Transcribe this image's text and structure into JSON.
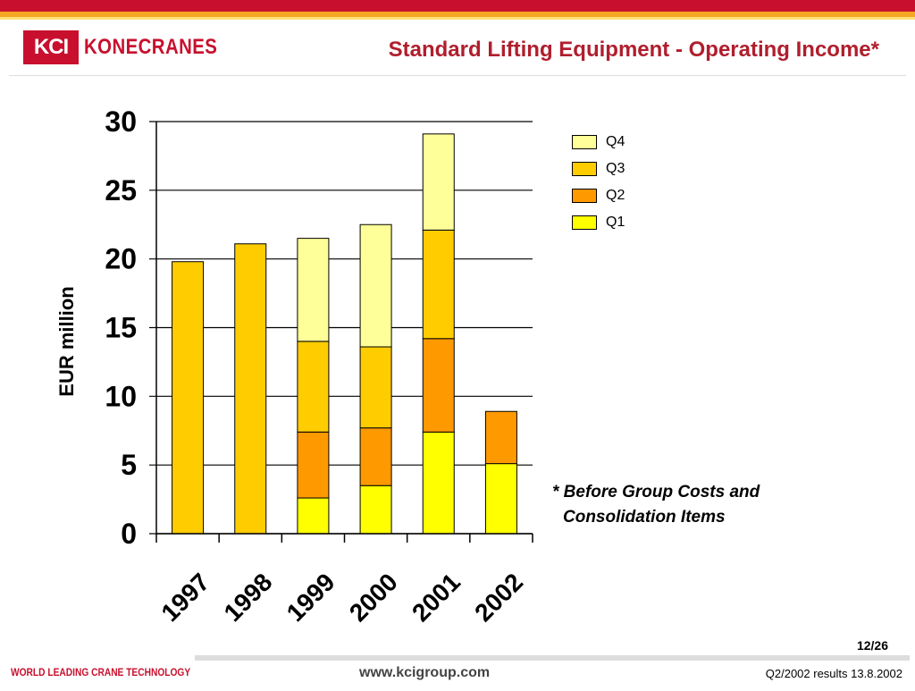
{
  "header": {
    "logo_mark": "KCI",
    "logo_text": "KONECRANES",
    "title": "Standard Lifting Equipment - Operating Income*"
  },
  "colors": {
    "Q1": "#ffff00",
    "Q2": "#ff9900",
    "Q3": "#ffcc00",
    "Q4": "#ffff99",
    "brand_red": "#c8102e"
  },
  "chart_data": {
    "type": "bar",
    "stacked": true,
    "categories": [
      "1997",
      "1998",
      "1999",
      "2000",
      "2001",
      "2002"
    ],
    "series": [
      {
        "name": "Q1",
        "values": [
          0,
          0,
          2.6,
          3.5,
          7.4,
          5.1
        ]
      },
      {
        "name": "Q2",
        "values": [
          0,
          0,
          4.8,
          4.2,
          6.8,
          3.8
        ]
      },
      {
        "name": "Q3",
        "values": [
          19.8,
          21.1,
          6.6,
          5.9,
          7.9,
          0
        ]
      },
      {
        "name": "Q4",
        "values": [
          0,
          0,
          7.5,
          8.9,
          7.0,
          0
        ]
      }
    ],
    "ylabel": "EUR million",
    "xlabel": "",
    "ylim": [
      0,
      30
    ],
    "yticks": [
      "0",
      "5",
      "10",
      "15",
      "20",
      "25",
      "30"
    ],
    "grid": true,
    "legend_order": [
      "Q4",
      "Q3",
      "Q2",
      "Q1"
    ],
    "legend_position": "right"
  },
  "footnote": {
    "line1": "* Before Group Costs and",
    "line2": "Consolidation Items"
  },
  "page_number": "12/26",
  "footer": {
    "tagline": "WORLD LEADING CRANE TECHNOLOGY",
    "website": "www.kcigroup.com",
    "report": "Q2/2002 results 13.8.2002"
  }
}
